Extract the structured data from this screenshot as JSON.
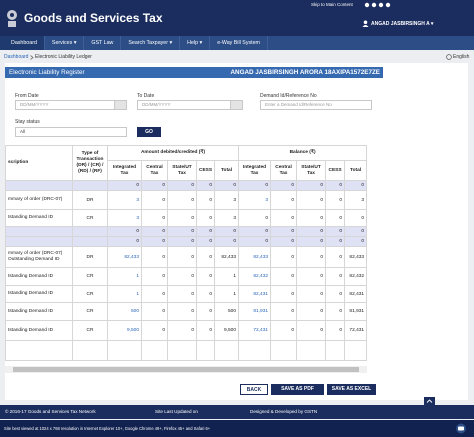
{
  "header": {
    "skip": "Skip to Main Content",
    "brand": "Goods and Services Tax",
    "user": "ANGAD JASBIRSINGH A ▾"
  },
  "nav": [
    "Dashboard",
    "Services ▾",
    "GST Law",
    "Search Taxpayer ▾",
    "Help ▾",
    "e-Way Bill System"
  ],
  "breadcrumb": {
    "home": "Dashboard",
    "current": "Electronic Liability Ledger",
    "language": "English"
  },
  "panel": {
    "title": "Electronic Liability Register",
    "taxpayer": "ANGAD JASBIRSINGH ARORA 18AXIPA1572E7ZE"
  },
  "form": {
    "from_label": "From Date",
    "from_placeholder": "DD/MM/YYYY",
    "to_label": "To Date",
    "to_placeholder": "DD/MM/YYYY",
    "demand_label": "Demand Id/Reference No",
    "demand_placeholder": "Enter a Demand Id/Reference No",
    "stay_label": "Stay status",
    "stay_value": "All",
    "go": "GO"
  },
  "table": {
    "headers": [
      "scription",
      "Type of Transaction (DR) / (CR) / (RD) / (RF)",
      "Amount debited/credited (₹)",
      "Balance (₹)"
    ],
    "subheaders": [
      "Integrated Tax",
      "Central Tax",
      "State/UT Tax",
      "CESS",
      "Total",
      "Integrated Tax",
      "Central Tax",
      "State/UT Tax",
      "CESS",
      "Total"
    ],
    "rows": [
      {
        "values": [
          "0",
          "0",
          "0",
          "0",
          "0",
          "0",
          "0",
          "0",
          "0",
          "0"
        ]
      },
      {
        "description": "mmary of order (DRC-07)",
        "type": "DR",
        "values": [
          "3",
          "0",
          "0",
          "0",
          "3",
          "3",
          "0",
          "0",
          "0",
          "3"
        ]
      },
      {
        "description": "tstanding Demand ID",
        "type": "CR",
        "values": [
          "3",
          "0",
          "0",
          "0",
          "3",
          "0",
          "0",
          "0",
          "0",
          "0"
        ]
      },
      {
        "values": [
          "0",
          "0",
          "0",
          "0",
          "0",
          "0",
          "0",
          "0",
          "0",
          "0"
        ]
      },
      {
        "values": [
          "0",
          "0",
          "0",
          "0",
          "0",
          "0",
          "0",
          "0",
          "0",
          "0"
        ]
      },
      {
        "description": "mmary of order (DRC-07) Outstanding Demand ID",
        "type": "DR",
        "values": [
          "82,433",
          "0",
          "0",
          "0",
          "82,433",
          "82,433",
          "0",
          "0",
          "0",
          "82,433"
        ]
      },
      {
        "description": "tstanding Demand ID",
        "type": "CR",
        "values": [
          "1",
          "0",
          "0",
          "0",
          "1",
          "82,432",
          "0",
          "0",
          "0",
          "82,432"
        ]
      },
      {
        "description": "tstanding Demand ID",
        "type": "CR",
        "values": [
          "1",
          "0",
          "0",
          "0",
          "1",
          "82,431",
          "0",
          "0",
          "0",
          "82,431"
        ]
      },
      {
        "description": "tstanding Demand ID",
        "type": "CR",
        "values": [
          "500",
          "0",
          "0",
          "0",
          "500",
          "81,931",
          "0",
          "0",
          "0",
          "81,931"
        ]
      },
      {
        "description": "tstanding Demand ID",
        "type": "CR",
        "values": [
          "9,500",
          "0",
          "0",
          "0",
          "9,500",
          "72,431",
          "0",
          "0",
          "0",
          "72,431"
        ]
      }
    ]
  },
  "buttons": [
    "BACK",
    "SAVE AS PDF",
    "SAVE AS EXCEL"
  ],
  "footer": {
    "copyright": "© 2016-17 Goods and Services Tax Network",
    "updated": "Site Last Updated on",
    "designed": "Designed & Developed by GSTN",
    "best_viewed": "Site best viewed at 1024 x 768 resolution in Internet Explorer 10+, Google Chrome 49+, Firefox 45+ and Safari 6+"
  }
}
